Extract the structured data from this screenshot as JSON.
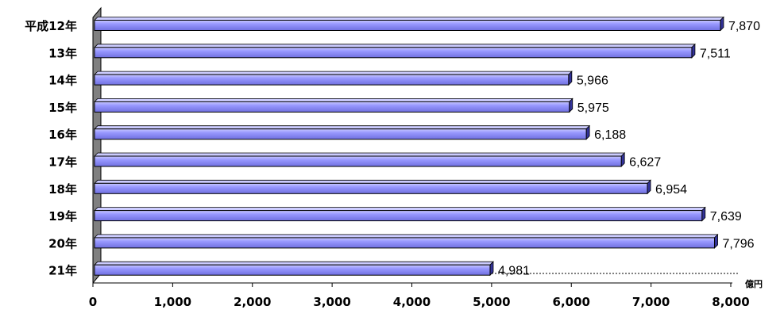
{
  "chart_data": {
    "type": "bar",
    "orientation": "horizontal",
    "categories": [
      "平成12年",
      "13年",
      "14年",
      "15年",
      "16年",
      "17年",
      "18年",
      "19年",
      "20年",
      "21年"
    ],
    "values": [
      7870,
      7511,
      5966,
      5975,
      6188,
      6627,
      6954,
      7639,
      7796,
      4981
    ],
    "value_labels": [
      "7,870",
      "7,511",
      "5,966",
      "5,975",
      "6,188",
      "6,627",
      "6,954",
      "7,639",
      "7,796",
      "4,981"
    ],
    "x_ticks": [
      "0",
      "1,000",
      "2,000",
      "3,000",
      "4,000",
      "5,000",
      "6,000",
      "7,000",
      "8,000"
    ],
    "xlim": [
      0,
      8000
    ],
    "unit": "億円",
    "title": "",
    "xlabel": "",
    "ylabel": "",
    "grid": false,
    "legend": "none",
    "colors": {
      "bar_fill": "#9999ff",
      "bar_top": "#ccccff",
      "bar_side": "#333399",
      "wall": "#808080",
      "axis": "#000000"
    }
  }
}
